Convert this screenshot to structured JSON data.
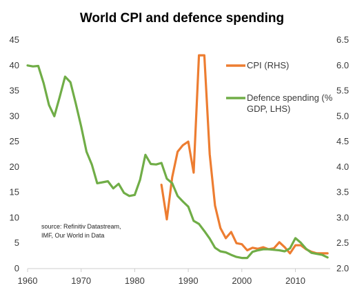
{
  "chart_data": {
    "type": "line",
    "title": "World CPI and defence spending",
    "source_line1": "source:  Refinitiv Datastream,",
    "source_line2": "IMF, Our World in Data",
    "x_ticks": [
      "1960",
      "1970",
      "1980",
      "1990",
      "2000",
      "2010"
    ],
    "xlim": [
      1960,
      2016.5
    ],
    "left_axis": {
      "ylim": [
        0,
        45
      ],
      "ticks": [
        "0",
        "5",
        "10",
        "15",
        "20",
        "25",
        "30",
        "35",
        "40",
        "45"
      ]
    },
    "right_axis": {
      "ylim": [
        2.0,
        6.5
      ],
      "ticks": [
        "2.0",
        "2.5",
        "3.0",
        "3.5",
        "4.0",
        "4.5",
        "5.0",
        "5.5",
        "6.0",
        "6.5"
      ]
    },
    "legend_position": "top-right",
    "series": [
      {
        "name": "CPI (RHS)",
        "legend_lines": [
          "CPI (RHS)"
        ],
        "axis": "right",
        "color": "#ed7d31",
        "x": [
          1985,
          1986,
          1987,
          1988,
          1989,
          1990,
          1991,
          1992,
          1993,
          1994,
          1995,
          1996,
          1997,
          1998,
          1999,
          2000,
          2001,
          2002,
          2003,
          2004,
          2005,
          2006,
          2007,
          2008,
          2009,
          2010,
          2011,
          2012,
          2013,
          2014,
          2015,
          2016
        ],
        "values": [
          3.65,
          2.97,
          3.8,
          4.3,
          4.43,
          4.5,
          3.89,
          6.2,
          6.2,
          4.25,
          3.24,
          2.8,
          2.6,
          2.72,
          2.5,
          2.48,
          2.36,
          2.41,
          2.39,
          2.42,
          2.38,
          2.4,
          2.52,
          2.42,
          2.3,
          2.46,
          2.46,
          2.38,
          2.33,
          2.3,
          2.3,
          2.3
        ]
      },
      {
        "name": "Defence spending (% GDP, LHS)",
        "legend_lines": [
          "Defence spending (%",
          "GDP, LHS)"
        ],
        "axis": "left",
        "color": "#70ad47",
        "x": [
          1960,
          1961,
          1962,
          1963,
          1964,
          1965,
          1966,
          1967,
          1968,
          1969,
          1970,
          1971,
          1972,
          1973,
          1974,
          1975,
          1976,
          1977,
          1978,
          1979,
          1980,
          1981,
          1982,
          1983,
          1984,
          1985,
          1986,
          1987,
          1988,
          1989,
          1990,
          1991,
          1992,
          1993,
          1994,
          1995,
          1996,
          1997,
          1998,
          1999,
          2000,
          2001,
          2002,
          2003,
          2004,
          2005,
          2006,
          2007,
          2008,
          2009,
          2010,
          2011,
          2012,
          2013,
          2014,
          2015,
          2016
        ],
        "values": [
          40,
          39.8,
          39.9,
          36.5,
          32.2,
          30.0,
          33.8,
          37.8,
          36.7,
          32.5,
          28.0,
          23.0,
          20.5,
          16.8,
          17.0,
          17.2,
          15.8,
          16.7,
          14.9,
          14.3,
          14.5,
          17.5,
          22.4,
          20.6,
          20.5,
          20.8,
          17.7,
          16.8,
          14.3,
          13.2,
          12.2,
          9.4,
          8.8,
          7.4,
          5.9,
          4.1,
          3.4,
          3.2,
          2.7,
          2.3,
          2.1,
          2.1,
          3.3,
          3.6,
          3.8,
          3.8,
          3.7,
          3.6,
          3.4,
          4.0,
          6.0,
          5.1,
          3.9,
          3.1,
          2.9,
          2.7,
          2.2
        ]
      }
    ]
  }
}
